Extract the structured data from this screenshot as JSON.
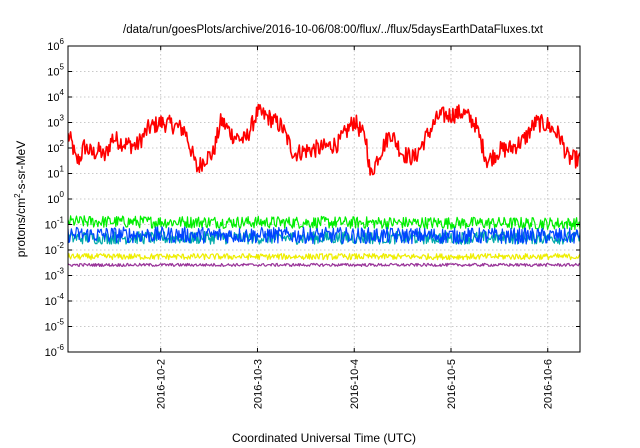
{
  "chart_data": {
    "type": "line",
    "title": "/data/run/goesPlots/archive/2016-10-06/08:00/flux/../flux/5daysEarthDataFluxes.txt",
    "xlabel": "Coordinated Universal Time (UTC)",
    "ylabel_prefix": "protons/cm",
    "ylabel_sup": "2",
    "ylabel_suffix": "-s-sr-MeV",
    "y_scale": "log",
    "ylim": [
      1e-06,
      1000000.0
    ],
    "xlim": [
      "2016-10-01T01:00",
      "2016-10-06T08:00"
    ],
    "grid": true,
    "legend": "none",
    "y_ticks": [
      {
        "value": 1e-06,
        "base": "10",
        "exp": "-6"
      },
      {
        "value": 1e-05,
        "base": "10",
        "exp": "-5"
      },
      {
        "value": 0.0001,
        "base": "10",
        "exp": "-4"
      },
      {
        "value": 0.001,
        "base": "10",
        "exp": "-3"
      },
      {
        "value": 0.01,
        "base": "10",
        "exp": "-2"
      },
      {
        "value": 0.1,
        "base": "10",
        "exp": "-1"
      },
      {
        "value": 1.0,
        "base": "10",
        "exp": "0"
      },
      {
        "value": 10.0,
        "base": "10",
        "exp": "1"
      },
      {
        "value": 100.0,
        "base": "10",
        "exp": "2"
      },
      {
        "value": 1000.0,
        "base": "10",
        "exp": "3"
      },
      {
        "value": 10000.0,
        "base": "10",
        "exp": "4"
      },
      {
        "value": 100000.0,
        "base": "10",
        "exp": "5"
      },
      {
        "value": 1000000.0,
        "base": "10",
        "exp": "6"
      }
    ],
    "x_ticks": [
      {
        "value": "2016-10-02T00:00",
        "label": "2016-10-2"
      },
      {
        "value": "2016-10-03T00:00",
        "label": "2016-10-3"
      },
      {
        "value": "2016-10-04T00:00",
        "label": "2016-10-4"
      },
      {
        "value": "2016-10-05T00:00",
        "label": "2016-10-5"
      },
      {
        "value": "2016-10-06T00:00",
        "label": "2016-10-6"
      }
    ],
    "series": [
      {
        "color": "#ff0000",
        "noise": 0.35,
        "x": [
          "2016-10-01T01:00",
          "2016-10-01T02:00",
          "2016-10-01T03:00",
          "2016-10-01T04:00",
          "2016-10-01T05:00",
          "2016-10-01T07:00",
          "2016-10-01T09:00",
          "2016-10-01T10:00",
          "2016-10-01T12:00",
          "2016-10-01T15:00",
          "2016-10-01T18:00",
          "2016-10-01T21:00",
          "2016-10-02T00:00",
          "2016-10-02T03:00",
          "2016-10-02T06:00",
          "2016-10-02T09:00",
          "2016-10-02T11:00",
          "2016-10-02T13:00",
          "2016-10-02T15:00",
          "2016-10-02T18:00",
          "2016-10-02T21:00",
          "2016-10-03T00:00",
          "2016-10-03T03:00",
          "2016-10-03T06:00",
          "2016-10-03T09:00",
          "2016-10-03T12:00",
          "2016-10-03T16:00",
          "2016-10-03T20:00",
          "2016-10-04T00:00",
          "2016-10-04T03:00",
          "2016-10-04T04:00",
          "2016-10-04T06:00",
          "2016-10-04T09:00",
          "2016-10-04T12:00",
          "2016-10-04T15:00",
          "2016-10-04T18:00",
          "2016-10-04T21:00",
          "2016-10-05T00:00",
          "2016-10-05T03:00",
          "2016-10-05T06:00",
          "2016-10-05T09:00",
          "2016-10-05T12:00",
          "2016-10-05T15:00",
          "2016-10-05T18:00",
          "2016-10-05T21:00",
          "2016-10-06T00:00",
          "2016-10-06T03:00",
          "2016-10-06T05:00",
          "2016-10-06T08:00"
        ],
        "y": [
          300,
          150,
          30,
          40,
          120,
          60,
          80,
          40,
          250,
          150,
          120,
          600,
          1000,
          800,
          500,
          15,
          40,
          60,
          1200,
          300,
          200,
          2500,
          1500,
          700,
          60,
          80,
          100,
          150,
          1200,
          200,
          8,
          50,
          400,
          60,
          40,
          300,
          1800,
          2000,
          2500,
          900,
          30,
          80,
          100,
          200,
          1000,
          800,
          300,
          40,
          35
        ]
      },
      {
        "color": "#00ee00",
        "noise": 0.24,
        "x": [
          "2016-10-01T01:00",
          "2016-10-06T08:00"
        ],
        "y": [
          0.13,
          0.11
        ]
      },
      {
        "color": "#00aaaa",
        "noise": 0.25,
        "x": [
          "2016-10-01T01:00",
          "2016-10-06T08:00"
        ],
        "y": [
          0.03,
          0.03
        ]
      },
      {
        "color": "#0044ff",
        "noise": 0.32,
        "x": [
          "2016-10-01T01:00",
          "2016-10-06T08:00"
        ],
        "y": [
          0.04,
          0.035
        ]
      },
      {
        "color": "#eeee00",
        "noise": 0.12,
        "x": [
          "2016-10-01T01:00",
          "2016-10-06T08:00"
        ],
        "y": [
          0.0055,
          0.0055
        ]
      },
      {
        "color": "#993399",
        "noise": 0.06,
        "x": [
          "2016-10-01T01:00",
          "2016-10-06T08:00"
        ],
        "y": [
          0.0026,
          0.0026
        ]
      }
    ]
  }
}
